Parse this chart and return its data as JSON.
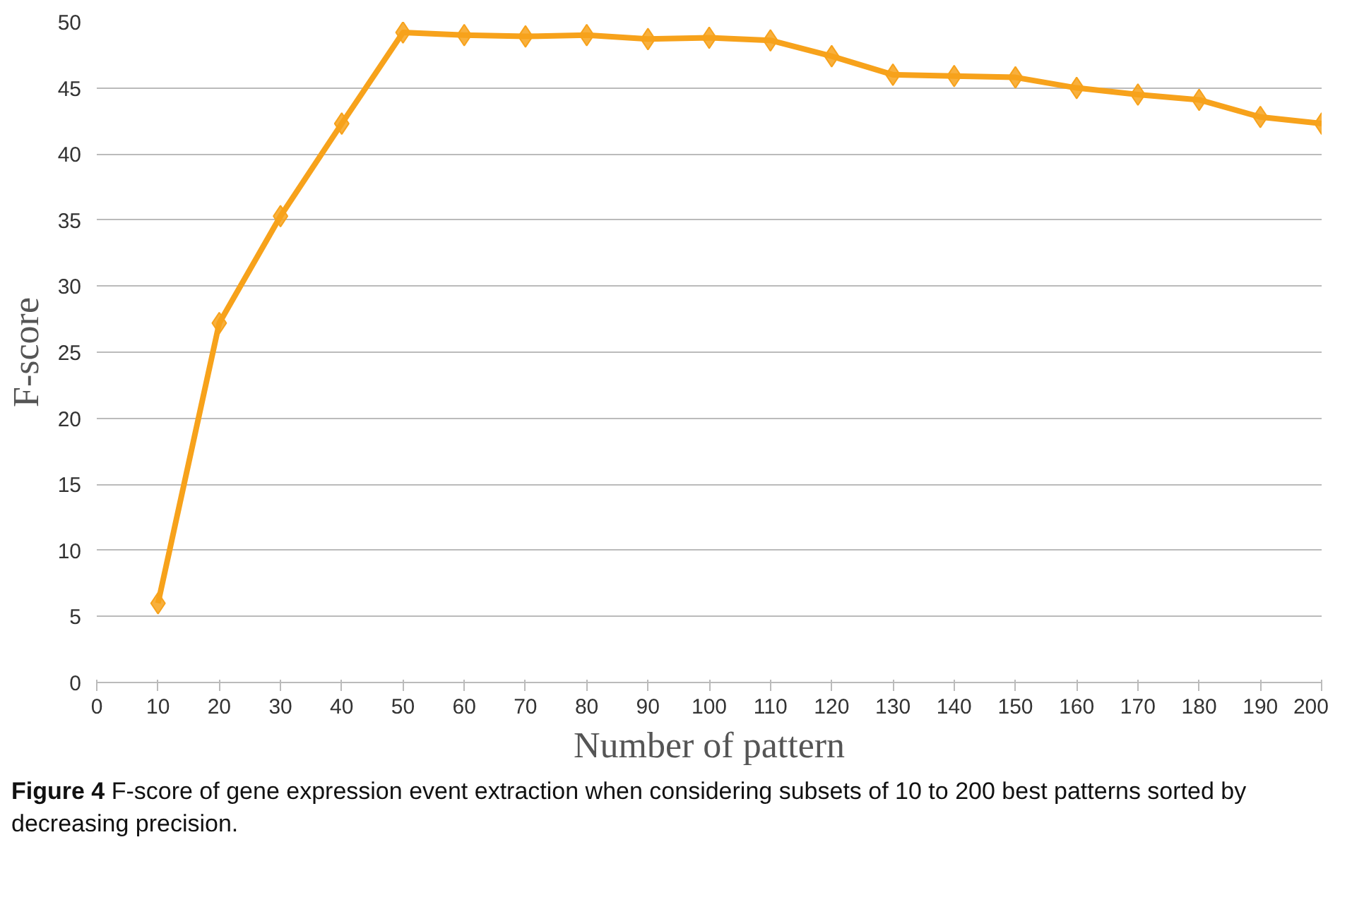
{
  "chart_data": {
    "type": "line",
    "xlabel": "Number of pattern",
    "ylabel": "F-score",
    "x": [
      10,
      20,
      30,
      40,
      50,
      60,
      70,
      80,
      90,
      100,
      110,
      120,
      130,
      140,
      150,
      160,
      170,
      180,
      190,
      200
    ],
    "series": [
      {
        "color": "#f7a21b",
        "values": [
          6,
          27.2,
          35.3,
          42.3,
          49.2,
          49.0,
          48.9,
          49.0,
          48.7,
          48.8,
          48.6,
          47.4,
          46.0,
          45.9,
          45.8,
          45.0,
          44.5,
          44.1,
          42.8,
          42.3
        ]
      }
    ],
    "xlim": [
      0,
      200
    ],
    "xticks": [
      0,
      10,
      20,
      30,
      40,
      50,
      60,
      70,
      80,
      90,
      100,
      110,
      120,
      130,
      140,
      150,
      160,
      170,
      180,
      190,
      200
    ],
    "ylim": [
      0,
      50
    ],
    "yticks": [
      0,
      5,
      10,
      15,
      20,
      25,
      30,
      35,
      40,
      45,
      50
    ],
    "grid": "y",
    "marker": "diamond",
    "line_style": "solid",
    "annotations": [
      "Figure 4",
      "F-score of gene expression event extraction when considering subsets of 10 to 200 best patterns sorted by decreasing precision."
    ]
  }
}
